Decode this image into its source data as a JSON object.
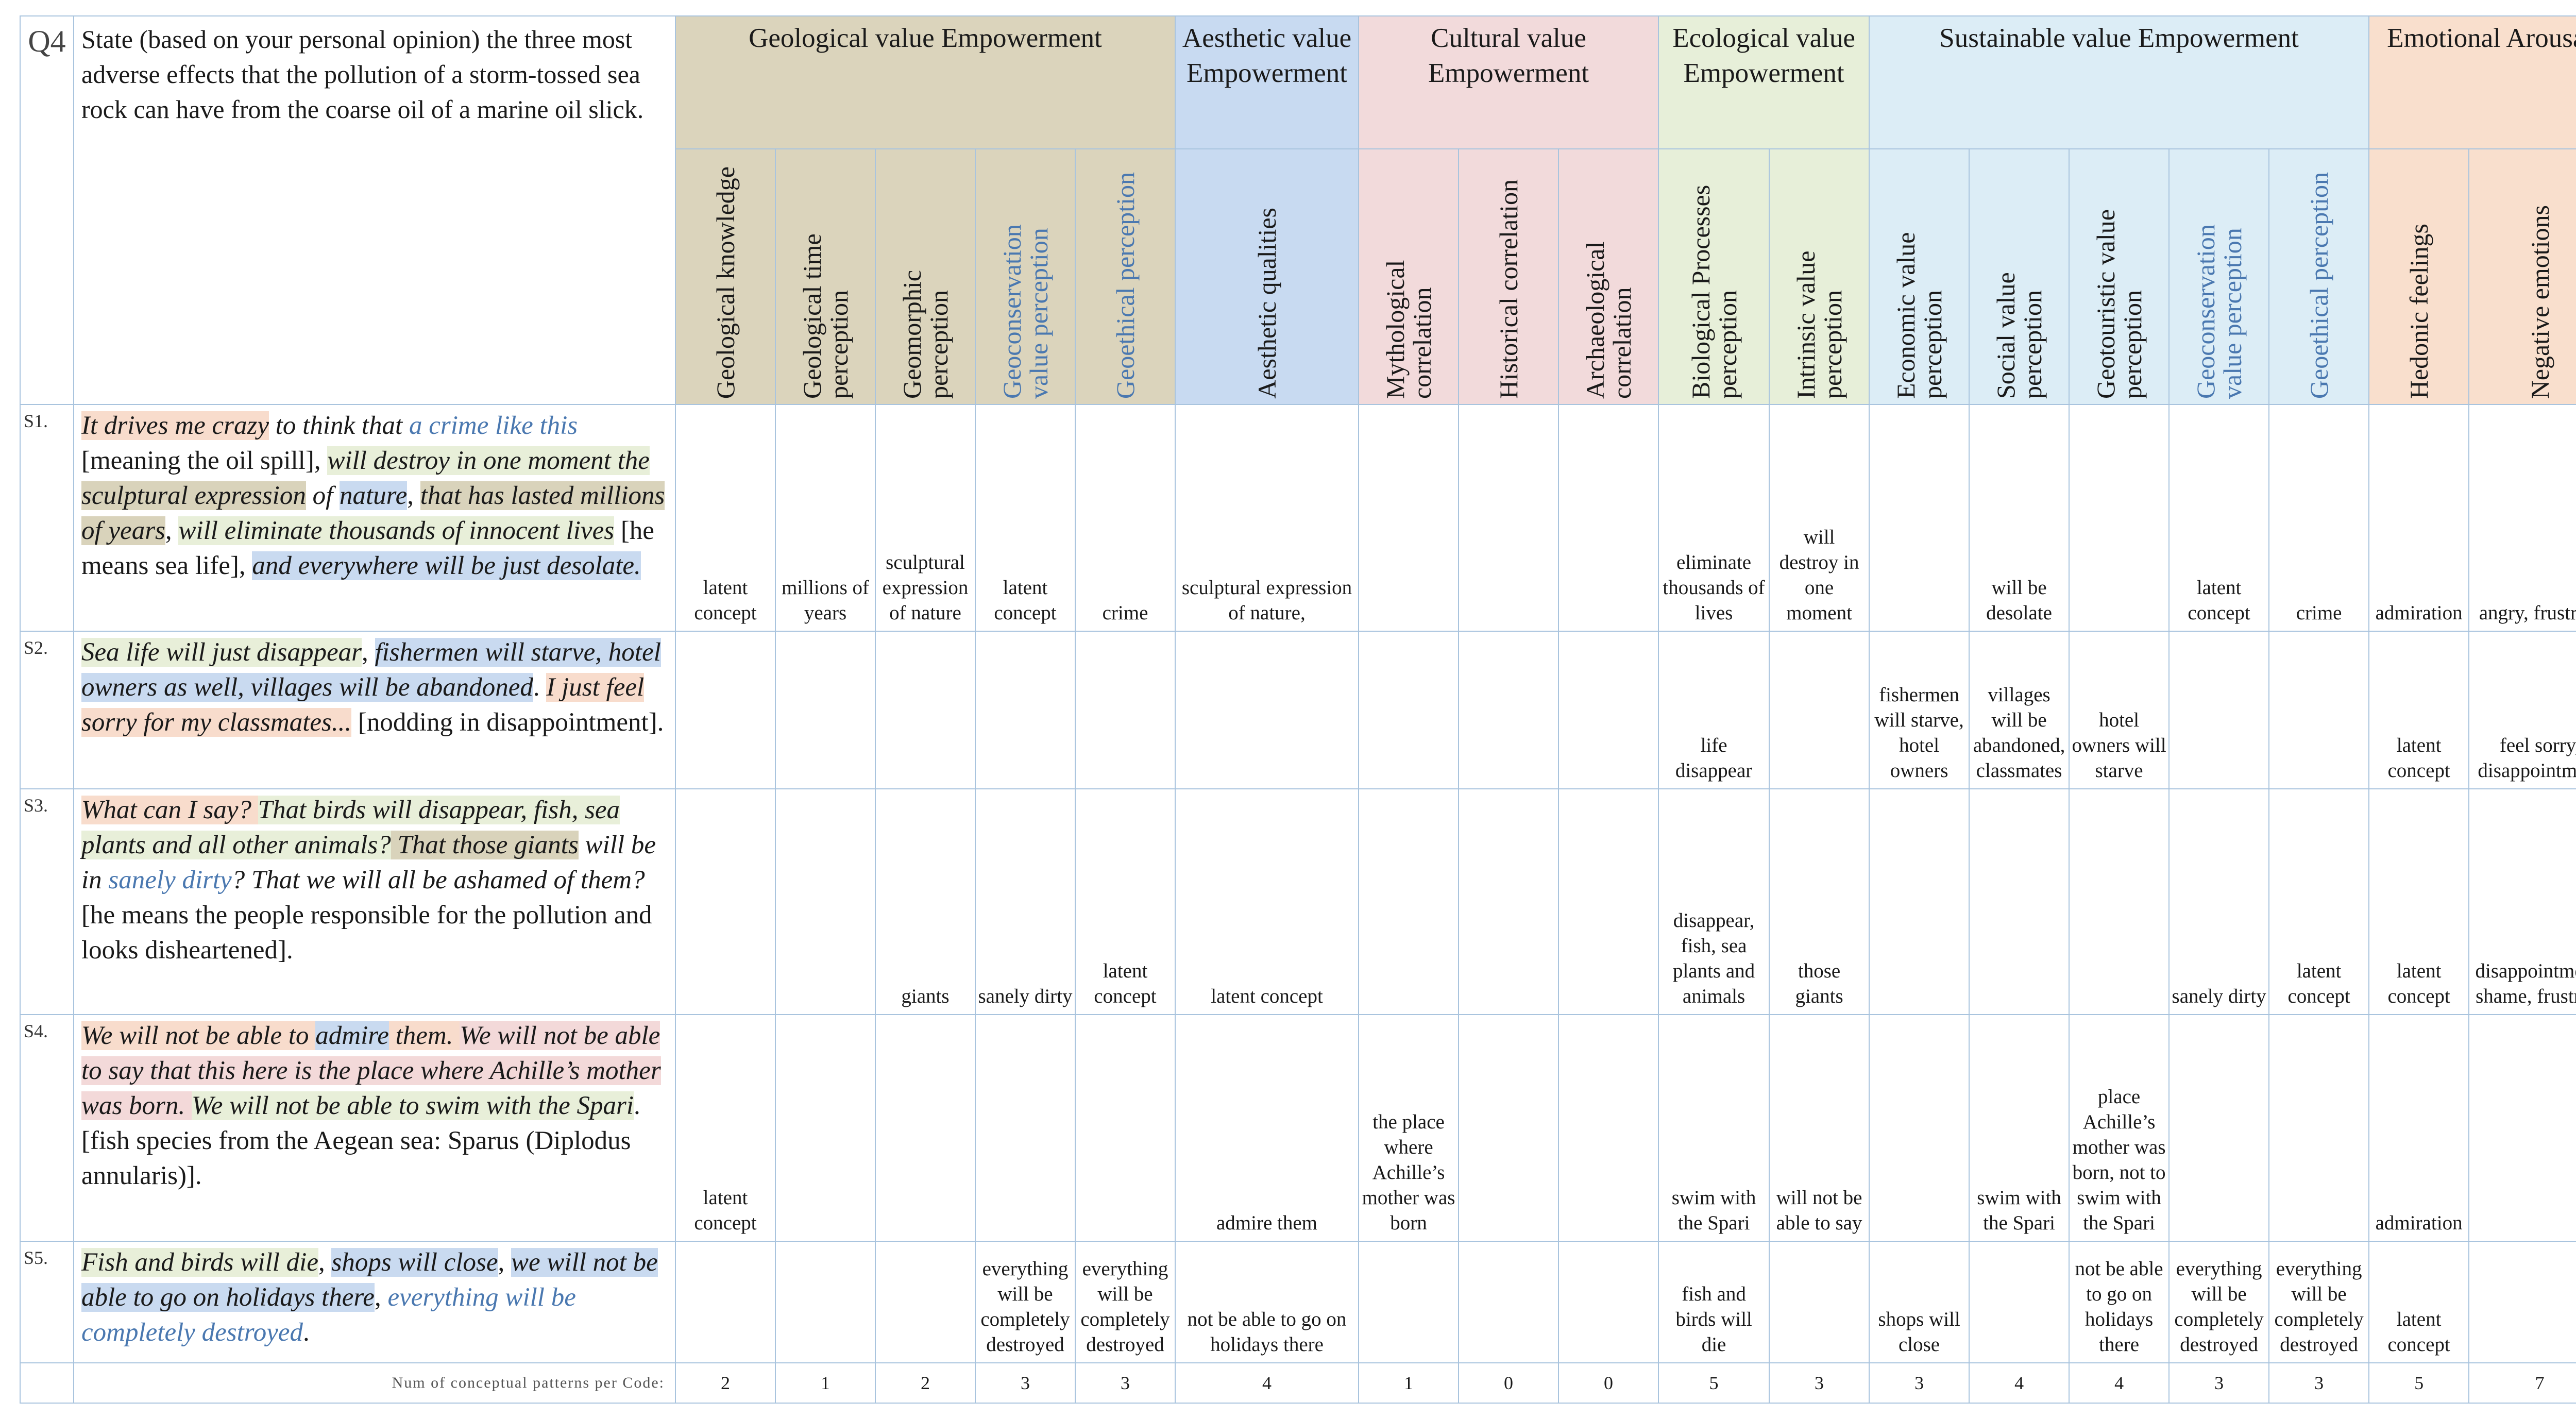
{
  "question": {
    "label": "Q4",
    "text": "State (based on your personal opinion) the three most adverse effects that the pollution of a storm-tossed sea rock can have from the coarse oil of a marine oil slick."
  },
  "groups": [
    {
      "label": "Geological value Empowerment",
      "color": "#dbd4bc"
    },
    {
      "label": "Aesthetic value Empowerment",
      "color": "#c8daf1"
    },
    {
      "label": "Cultural value Empowerment",
      "color": "#f2dadb"
    },
    {
      "label": "Ecological value Empowerment",
      "color": "#e7efd9"
    },
    {
      "label": "Sustainable value Empowerment",
      "color": "#dcedf6"
    },
    {
      "label": "Emotional Arousal",
      "color": "#f9dfcd"
    }
  ],
  "subheaders": [
    "Geological knowledge",
    "Geological time perception",
    "Geomorphic perception",
    "Geoconservation value perception",
    "Geoethical perception",
    "Aesthetic qualities",
    "Mythological correlation",
    "Historical correlation",
    "Archaeological correlation",
    "Biological Processes perception",
    "Intrinsic value perception",
    "Economic value perception",
    "Social value perception",
    "Geotouristic value perception",
    "Geoconservation value perception",
    "Geoethical perception",
    "Hedonic feelings",
    "Negative emotions"
  ],
  "rows": [
    {
      "id": "S1.",
      "text": [
        {
          "t": "It drives me crazy",
          "c": "o",
          "i": true
        },
        {
          "t": " to think that ",
          "i": true
        },
        {
          "t": "a crime like this",
          "c": "lb",
          "i": true
        },
        {
          "t": " [meaning the oil spill], "
        },
        {
          "t": "will destroy in one moment the ",
          "c": "g",
          "i": true
        },
        {
          "t": "sculptural expression",
          "c": "y",
          "i": true
        },
        {
          "t": " of ",
          "i": true
        },
        {
          "t": "nature",
          "c": "b",
          "i": true
        },
        {
          "t": ", "
        },
        {
          "t": "that has lasted millions of years",
          "c": "y",
          "i": true
        },
        {
          "t": ", "
        },
        {
          "t": "will eliminate thousands of innocent lives",
          "c": "g",
          "i": true
        },
        {
          "t": " [he means sea life], "
        },
        {
          "t": "and everywhere will be just desolate.",
          "c": "b",
          "i": true
        }
      ],
      "cells": [
        "latent concept",
        "millions of years",
        "sculptural expression of nature",
        "latent concept",
        "crime",
        "sculptural expression of nature,",
        "",
        "",
        "",
        "eliminate thousands of lives",
        "will destroy in one moment",
        "",
        "will be desolate",
        "",
        "latent concept",
        "crime",
        "admiration",
        "angry, frustrate"
      ]
    },
    {
      "id": "S2.",
      "text": [
        {
          "t": "Sea life will just disappear",
          "c": "g",
          "i": true
        },
        {
          "t": ", "
        },
        {
          "t": "fishermen will starve, hotel owners as well, villages will be abandoned",
          "c": "b",
          "i": true
        },
        {
          "t": ". "
        },
        {
          "t": "I just feel sorry for my classmates...",
          "c": "o",
          "i": true
        },
        {
          "t": " [nodding in disappointment]."
        }
      ],
      "cells": [
        "",
        "",
        "",
        "",
        "",
        "",
        "",
        "",
        "",
        "life disappear",
        "",
        "fishermen will starve, hotel owners",
        "villages will be abandoned, classmates",
        "hotel owners will starve",
        "",
        "",
        "latent concept",
        "feel sorry, disappointment"
      ]
    },
    {
      "id": "S3.",
      "text": [
        {
          "t": "What can I say? ",
          "c": "o",
          "i": true
        },
        {
          "t": "That birds will disappear, fish, sea plants and all other animals?",
          "c": "g",
          "i": true
        },
        {
          "t": " That those giants",
          "c": "y",
          "i": true
        },
        {
          "t": " will be in ",
          "i": true
        },
        {
          "t": "sanely dirty",
          "c": "lb",
          "i": true
        },
        {
          "t": "? That we will all be ashamed of them?",
          "i": true
        },
        {
          "t": " [he means the people responsible for the pollution and looks disheartened]."
        }
      ],
      "cells": [
        "",
        "",
        "giants",
        "sanely dirty",
        "latent concept",
        "latent concept",
        "",
        "",
        "",
        "disappear, fish, sea plants and animals",
        "those giants",
        "",
        "",
        "",
        "sanely dirty",
        "latent concept",
        "latent concept",
        "disappointment, shame, frustrate"
      ]
    },
    {
      "id": "S4.",
      "text": [
        {
          "t": "We will not be able to ",
          "c": "o",
          "i": true
        },
        {
          "t": "admire",
          "c": "b",
          "i": true
        },
        {
          "t": " them. ",
          "c": "o",
          "i": true
        },
        {
          "t": "We will not be able to say that this here is the place where Achille’s mother was born. ",
          "c": "p",
          "i": true
        },
        {
          "t": "We will not be able to swim with the Spari",
          "c": "g",
          "i": true
        },
        {
          "t": ". [fish species from the Aegean sea: Sparus (Diplodus annularis)]."
        }
      ],
      "cells": [
        "latent concept",
        "",
        "",
        "",
        "",
        "admire them",
        "the place where Achille’s mother was born",
        "",
        "",
        "swim with the Spari",
        "will not be able to say",
        "",
        "swim with the Spari",
        "place Achille’s mother was born, not to swim with the Spari",
        "",
        "",
        "admiration",
        ""
      ]
    },
    {
      "id": "S5.",
      "text": [
        {
          "t": "Fish and birds will die",
          "c": "g",
          "i": true
        },
        {
          "t": ", "
        },
        {
          "t": "shops will close",
          "c": "b",
          "i": true
        },
        {
          "t": ", "
        },
        {
          "t": "we will not be able to go on holidays there",
          "c": "b",
          "i": true
        },
        {
          "t": ", "
        },
        {
          "t": "everything will be completely destroyed",
          "c": "lb",
          "i": true
        },
        {
          "t": "."
        }
      ],
      "cells": [
        "",
        "",
        "",
        "everything will be completely destroyed",
        "everything will be completely destroyed",
        "not be able to go on holidays there",
        "",
        "",
        "",
        "fish and birds will die",
        "",
        "shops will close",
        "",
        "not be able to go on holidays there",
        "everything will be completely destroyed",
        "everything will be completely destroyed",
        "latent concept",
        ""
      ]
    }
  ],
  "footer": {
    "label": "Num of conceptual patterns per Code:",
    "counts": [
      "2",
      "1",
      "2",
      "3",
      "3",
      "4",
      "1",
      "0",
      "0",
      "5",
      "3",
      "3",
      "4",
      "4",
      "3",
      "3",
      "5",
      "7"
    ]
  }
}
